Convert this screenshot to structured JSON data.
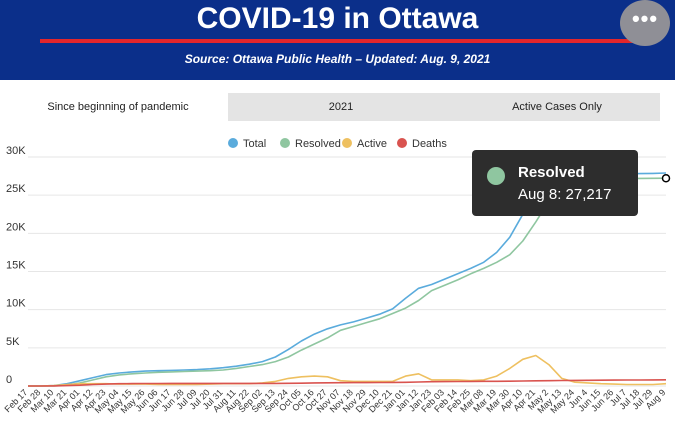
{
  "header": {
    "title": "COVID-19 in Ottawa",
    "source": "Source:  Ottawa Public Health – Updated:  Aug. 9, 2021",
    "menu_icon": "ellipsis-icon",
    "menu_label": "•••"
  },
  "tabs": [
    {
      "label": "Since beginning of pandemic",
      "active": true
    },
    {
      "label": "2021",
      "active": false
    },
    {
      "label": "Active Cases Only",
      "active": false
    }
  ],
  "tooltip": {
    "series": "Resolved",
    "text": "Aug 8: 27,217",
    "color": "#8fc6a0"
  },
  "chart_data": {
    "type": "line",
    "title": "",
    "xlabel": "",
    "ylabel": "",
    "ylim": [
      0,
      30000
    ],
    "yticks": [
      0,
      5000,
      10000,
      15000,
      20000,
      25000,
      30000
    ],
    "yticklabels": [
      "0",
      "5K",
      "10K",
      "15K",
      "20K",
      "25K",
      "30K"
    ],
    "grid": true,
    "legend_position": "top",
    "x": [
      "Feb 17",
      "Feb 28",
      "Mar 10",
      "Mar 21",
      "Apr 01",
      "Apr 12",
      "Apr 23",
      "May 04",
      "May 15",
      "May 26",
      "Jun 06",
      "Jun 17",
      "Jun 28",
      "Jul 09",
      "Jul 20",
      "Jul 31",
      "Aug 11",
      "Aug 22",
      "Sep 02",
      "Sep 13",
      "Sep 24",
      "Oct 05",
      "Oct 16",
      "Oct 27",
      "Nov 07",
      "Nov 18",
      "Nov 29",
      "Dec 10",
      "Dec 21",
      "Jan 01",
      "Jan 12",
      "Jan 23",
      "Feb 03",
      "Feb 14",
      "Feb 25",
      "Mar 08",
      "Mar 19",
      "Mar 30",
      "Apr 10",
      "Apr 21",
      "May 2",
      "May 13",
      "May 24",
      "Jun 4",
      "Jun 15",
      "Jun 26",
      "Jul 7",
      "Jul 18",
      "Jul 29",
      "Aug 9"
    ],
    "series": [
      {
        "name": "Total",
        "color": "#5aabdc",
        "values": [
          0,
          0,
          50,
          300,
          700,
          1100,
          1500,
          1700,
          1850,
          1950,
          2000,
          2050,
          2100,
          2150,
          2250,
          2400,
          2600,
          2850,
          3200,
          3800,
          4800,
          5900,
          6800,
          7500,
          8000,
          8400,
          8900,
          9400,
          10100,
          11500,
          12800,
          13300,
          14000,
          14700,
          15400,
          16200,
          17500,
          19500,
          22500,
          25500,
          27000,
          27500,
          27650,
          27720,
          27750,
          27780,
          27800,
          27820,
          27850,
          27900
        ]
      },
      {
        "name": "Resolved",
        "color": "#8fc6a0",
        "values": [
          0,
          0,
          0,
          100,
          400,
          800,
          1200,
          1450,
          1600,
          1700,
          1800,
          1850,
          1900,
          1950,
          2000,
          2100,
          2300,
          2550,
          2800,
          3200,
          3800,
          4700,
          5500,
          6300,
          7300,
          7800,
          8300,
          8800,
          9500,
          10200,
          11200,
          12500,
          13200,
          13900,
          14700,
          15400,
          16200,
          17200,
          19000,
          21500,
          24200,
          26500,
          27100,
          27150,
          27170,
          27180,
          27190,
          27200,
          27210,
          27217
        ]
      },
      {
        "name": "Active",
        "color": "#eec060",
        "values": [
          0,
          0,
          50,
          200,
          300,
          300,
          300,
          250,
          250,
          250,
          200,
          200,
          200,
          200,
          250,
          300,
          300,
          300,
          400,
          600,
          1000,
          1200,
          1300,
          1200,
          700,
          600,
          600,
          600,
          600,
          1300,
          1600,
          800,
          800,
          800,
          700,
          800,
          1300,
          2300,
          3500,
          4000,
          2800,
          1000,
          500,
          400,
          300,
          250,
          200,
          200,
          200,
          300
        ]
      },
      {
        "name": "Deaths",
        "color": "#d9534f",
        "values": [
          0,
          0,
          10,
          50,
          100,
          200,
          250,
          300,
          320,
          330,
          330,
          335,
          335,
          335,
          335,
          335,
          335,
          340,
          340,
          345,
          350,
          370,
          400,
          420,
          430,
          440,
          450,
          460,
          470,
          490,
          520,
          560,
          580,
          590,
          600,
          610,
          620,
          630,
          650,
          680,
          700,
          720,
          740,
          750,
          760,
          770,
          780,
          790,
          800,
          810
        ]
      }
    ]
  }
}
